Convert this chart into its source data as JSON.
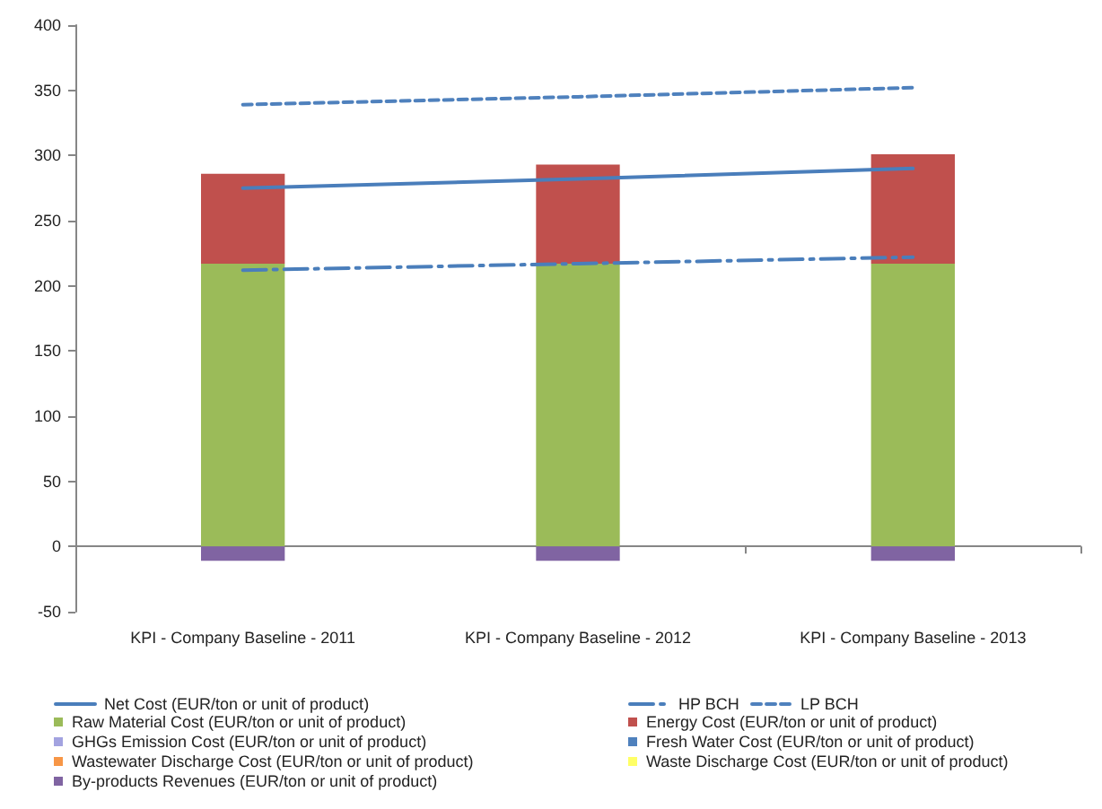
{
  "chart_data": {
    "type": "bar",
    "categories": [
      "KPI - Company Baseline - 2011",
      "KPI - Company Baseline - 2012",
      "KPI - Company Baseline - 2013"
    ],
    "series": [
      {
        "name": "Net Cost (EUR/ton or unit of product)",
        "type": "line",
        "color": "#4a7ebb",
        "line_style": "solid",
        "values": [
          275,
          282,
          290
        ]
      },
      {
        "name": "HP BCH",
        "type": "line",
        "color": "#4a7ebb",
        "line_style": "dashdot",
        "values": [
          212,
          217,
          222
        ]
      },
      {
        "name": "LP BCH",
        "type": "line",
        "color": "#4f81bd",
        "line_style": "dashed",
        "values": [
          339,
          345,
          352
        ]
      },
      {
        "name": "Raw Material Cost (EUR/ton or unit of product)",
        "color": "#9bbb59",
        "values": [
          217,
          217,
          217
        ]
      },
      {
        "name": "Energy Cost (EUR/ton or unit of product)",
        "color": "#c0504d",
        "values": [
          69,
          76,
          84
        ]
      },
      {
        "name": "GHGs Emission Cost (EUR/ton or unit of product)",
        "color": "#a3a3e0",
        "values": [
          0,
          0,
          0
        ]
      },
      {
        "name": "Fresh Water Cost (EUR/ton or unit of product)",
        "color": "#4f81bd",
        "values": [
          0,
          0,
          0
        ]
      },
      {
        "name": "Wastewater Discharge Cost (EUR/ton or unit of product)",
        "color": "#f79646",
        "values": [
          0,
          0,
          0
        ]
      },
      {
        "name": "Waste Discharge Cost (EUR/ton or unit of product)",
        "color": "#ffff66",
        "values": [
          0,
          0,
          0
        ]
      },
      {
        "name": "By-products Revenues (EUR/ton or unit of product)",
        "color": "#8064a2",
        "values": [
          -11,
          -11,
          -11
        ]
      }
    ],
    "stacked": true,
    "ylim": [
      -50,
      400
    ],
    "yticks": [
      -50,
      0,
      50,
      100,
      150,
      200,
      250,
      300,
      350,
      400
    ],
    "legend": "bottom"
  }
}
